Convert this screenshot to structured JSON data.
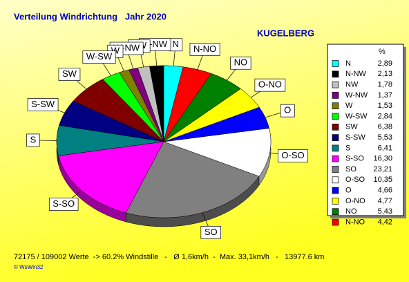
{
  "chart_data": {
    "type": "pie",
    "title": "Verteilung Windrichtung   Jahr 2020",
    "subtitle": "KUGELBERG",
    "categories": [
      "N",
      "N-NW",
      "NW",
      "W-NW",
      "W",
      "W-SW",
      "SW",
      "S-SW",
      "S",
      "S-SO",
      "SO",
      "O-SO",
      "O",
      "O-NO",
      "NO",
      "N-NO"
    ],
    "values": [
      2.89,
      2.13,
      1.78,
      1.37,
      1.53,
      2.84,
      6.38,
      5.53,
      6.41,
      16.3,
      23.21,
      10.35,
      4.66,
      4.77,
      5.43,
      4.42
    ],
    "value_labels": [
      "2,89",
      "2,13",
      "1,78",
      "1,37",
      "1,53",
      "2,84",
      "6,38",
      "5,53",
      "6,41",
      "16,30",
      "23,21",
      "10,35",
      "4,66",
      "4,77",
      "5,43",
      "4,42"
    ],
    "colors": [
      "#00ffff",
      "#000000",
      "#c0c0c0",
      "#800080",
      "#808000",
      "#00ff00",
      "#800000",
      "#000080",
      "#008080",
      "#ff00ff",
      "#808080",
      "#ffffff",
      "#0000ff",
      "#ffff00",
      "#008000",
      "#ff0000"
    ],
    "legend": "right",
    "legend_title": "%",
    "footer": "72175 / 109002 Werte  -> 60.2% Windstille   -   Ø 1,6km/h  -  Max. 33,1km/h   -   13977.6 km",
    "copyright": "© WsWin32"
  }
}
